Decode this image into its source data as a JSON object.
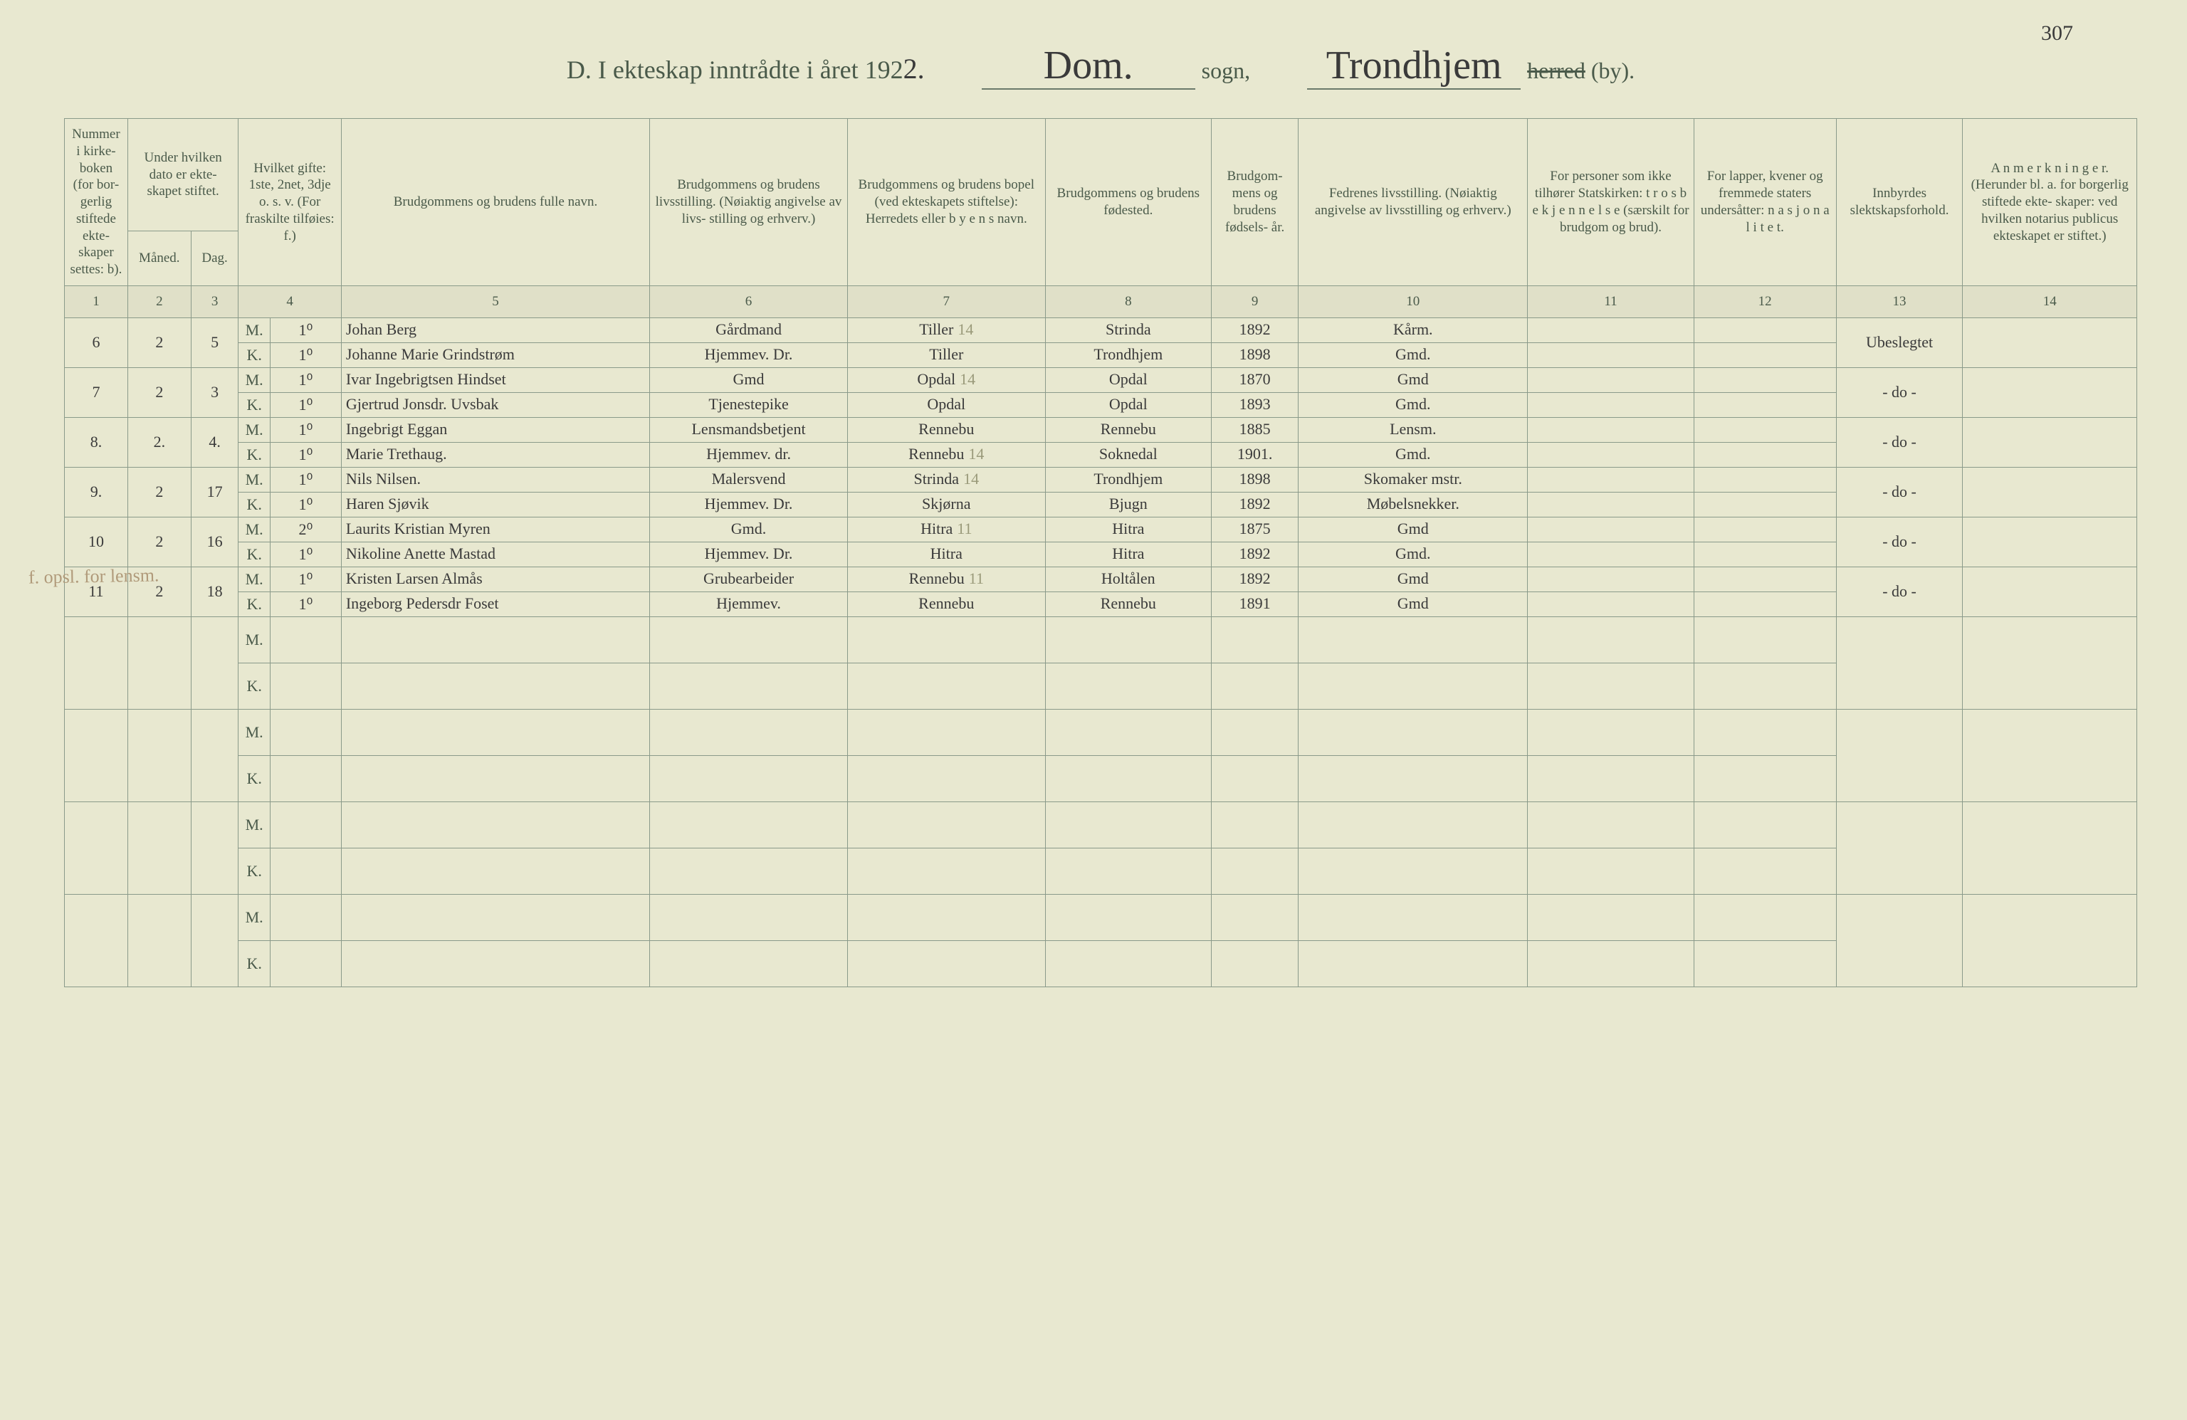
{
  "page_number": "307",
  "header": {
    "title_prefix": "D.  I ekteskap inntrådte i året 192",
    "year_suffix": "2.",
    "sogn_value": "Dom.",
    "sogn_label": "sogn,",
    "herred_value": "Trondhjem",
    "herred_strike": "herred",
    "herred_paren": "(by)."
  },
  "margin_note": "f. opsl. for lensm.",
  "columns": {
    "h1": "Nummer i kirke- boken (for bor- gerlig stiftede ekte- skaper settes: b).",
    "h2a": "Under hvilken dato er ekte- skapet stiftet.",
    "h2b_m": "Måned.",
    "h2b_d": "Dag.",
    "h4": "Hvilket gifte: 1ste, 2net, 3dje o. s. v. (For fraskilte tilføies: f.)",
    "h5": "Brudgommens og brudens fulle navn.",
    "h6": "Brudgommens og brudens livsstilling. (Nøiaktig angivelse av livs- stilling og erhverv.)",
    "h7": "Brudgommens og brudens bopel (ved ekteskapets stiftelse): Herredets eller  b y e n s  navn.",
    "h8": "Brudgommens og brudens fødested.",
    "h9": "Brudgom- mens og brudens fødsels- år.",
    "h10": "Fedrenes livsstilling. (Nøiaktig angivelse av livsstilling og erhverv.)",
    "h11": "For personer som ikke tilhører Statskirken: t r o s b e k j e n n e l s e (særskilt for brudgom og brud).",
    "h12": "For lapper, kvener og fremmede staters undersåtter: n a s j o n a l i t e t.",
    "h13": "Innbyrdes slektskapsforhold.",
    "h14": "A n m e r k n i n g e r. (Herunder bl. a. for borgerlig stiftede ekte- skaper: ved hvilken notarius publicus ekteskapet er stiftet.)"
  },
  "colnums": [
    "1",
    "2",
    "3",
    "4",
    "5",
    "6",
    "7",
    "8",
    "9",
    "10",
    "11",
    "12",
    "13",
    "14"
  ],
  "mk": {
    "m": "M.",
    "k": "K."
  },
  "entries": [
    {
      "num": "6",
      "mon": "2",
      "day": "5",
      "m": {
        "gifte": "1⁰",
        "name": "Johan Berg",
        "liv": "Gårdmand",
        "bopel": "Tiller",
        "bopel_ref": "14",
        "fod": "Strinda",
        "aar": "1892",
        "fedr": "Kårm."
      },
      "k": {
        "gifte": "1⁰",
        "name": "Johanne Marie Grindstrøm",
        "liv": "Hjemmev. Dr.",
        "bopel": "Tiller",
        "fod": "Trondhjem",
        "aar": "1898",
        "fedr": "Gmd."
      },
      "slekt": "Ubeslegtet"
    },
    {
      "num": "7",
      "mon": "2",
      "day": "3",
      "m": {
        "gifte": "1⁰",
        "name": "Ivar Ingebrigtsen Hindset",
        "liv": "Gmd",
        "bopel": "Opdal",
        "bopel_ref": "14",
        "fod": "Opdal",
        "aar": "1870",
        "fedr": "Gmd"
      },
      "k": {
        "gifte": "1⁰",
        "name": "Gjertrud Jonsdr. Uvsbak",
        "liv": "Tjenestepike",
        "bopel": "Opdal",
        "fod": "Opdal",
        "aar": "1893",
        "fedr": "Gmd."
      },
      "slekt": "- do -"
    },
    {
      "num": "8.",
      "mon": "2.",
      "day": "4.",
      "m": {
        "gifte": "1⁰",
        "name": "Ingebrigt Eggan",
        "liv": "Lensmandsbetjent",
        "bopel": "Rennebu",
        "fod": "Rennebu",
        "aar": "1885",
        "fedr": "Lensm."
      },
      "k": {
        "gifte": "1⁰",
        "name": "Marie Trethaug.",
        "liv": "Hjemmev. dr.",
        "bopel": "Rennebu",
        "bopel_ref": "14",
        "fod": "Soknedal",
        "aar": "1901.",
        "fedr": "Gmd."
      },
      "slekt": "- do -"
    },
    {
      "num": "9.",
      "mon": "2",
      "day": "17",
      "m": {
        "gifte": "1⁰",
        "name": "Nils Nilsen.",
        "liv": "Malersvend",
        "bopel": "Strinda",
        "bopel_ref": "14",
        "fod": "Trondhjem",
        "aar": "1898",
        "fedr": "Skomaker mstr."
      },
      "k": {
        "gifte": "1⁰",
        "name": "Haren Sjøvik",
        "liv": "Hjemmev. Dr.",
        "bopel": "Skjørna",
        "fod": "Bjugn",
        "aar": "1892",
        "fedr": "Møbelsnekker."
      },
      "slekt": "- do -"
    },
    {
      "num": "10",
      "mon": "2",
      "day": "16",
      "m": {
        "gifte": "2⁰",
        "name": "Laurits Kristian Myren",
        "liv": "Gmd.",
        "bopel": "Hitra",
        "bopel_ref": "11",
        "fod": "Hitra",
        "aar": "1875",
        "fedr": "Gmd"
      },
      "k": {
        "gifte": "1⁰",
        "name": "Nikoline Anette Mastad",
        "liv": "Hjemmev. Dr.",
        "bopel": "Hitra",
        "fod": "Hitra",
        "aar": "1892",
        "fedr": "Gmd."
      },
      "slekt": "- do -"
    },
    {
      "num": "11",
      "mon": "2",
      "day": "18",
      "m": {
        "gifte": "1⁰",
        "name": "Kristen Larsen Almås",
        "liv": "Grubearbeider",
        "bopel": "Rennebu",
        "bopel_ref": "11",
        "fod": "Holtålen",
        "aar": "1892",
        "fedr": "Gmd"
      },
      "k": {
        "gifte": "1⁰",
        "name": "Ingeborg Pedersdr Foset",
        "liv": "Hjemmev.",
        "bopel": "Rennebu",
        "fod": "Rennebu",
        "aar": "1891",
        "fedr": "Gmd"
      },
      "slekt": "- do -"
    }
  ],
  "empty_pairs": 4
}
